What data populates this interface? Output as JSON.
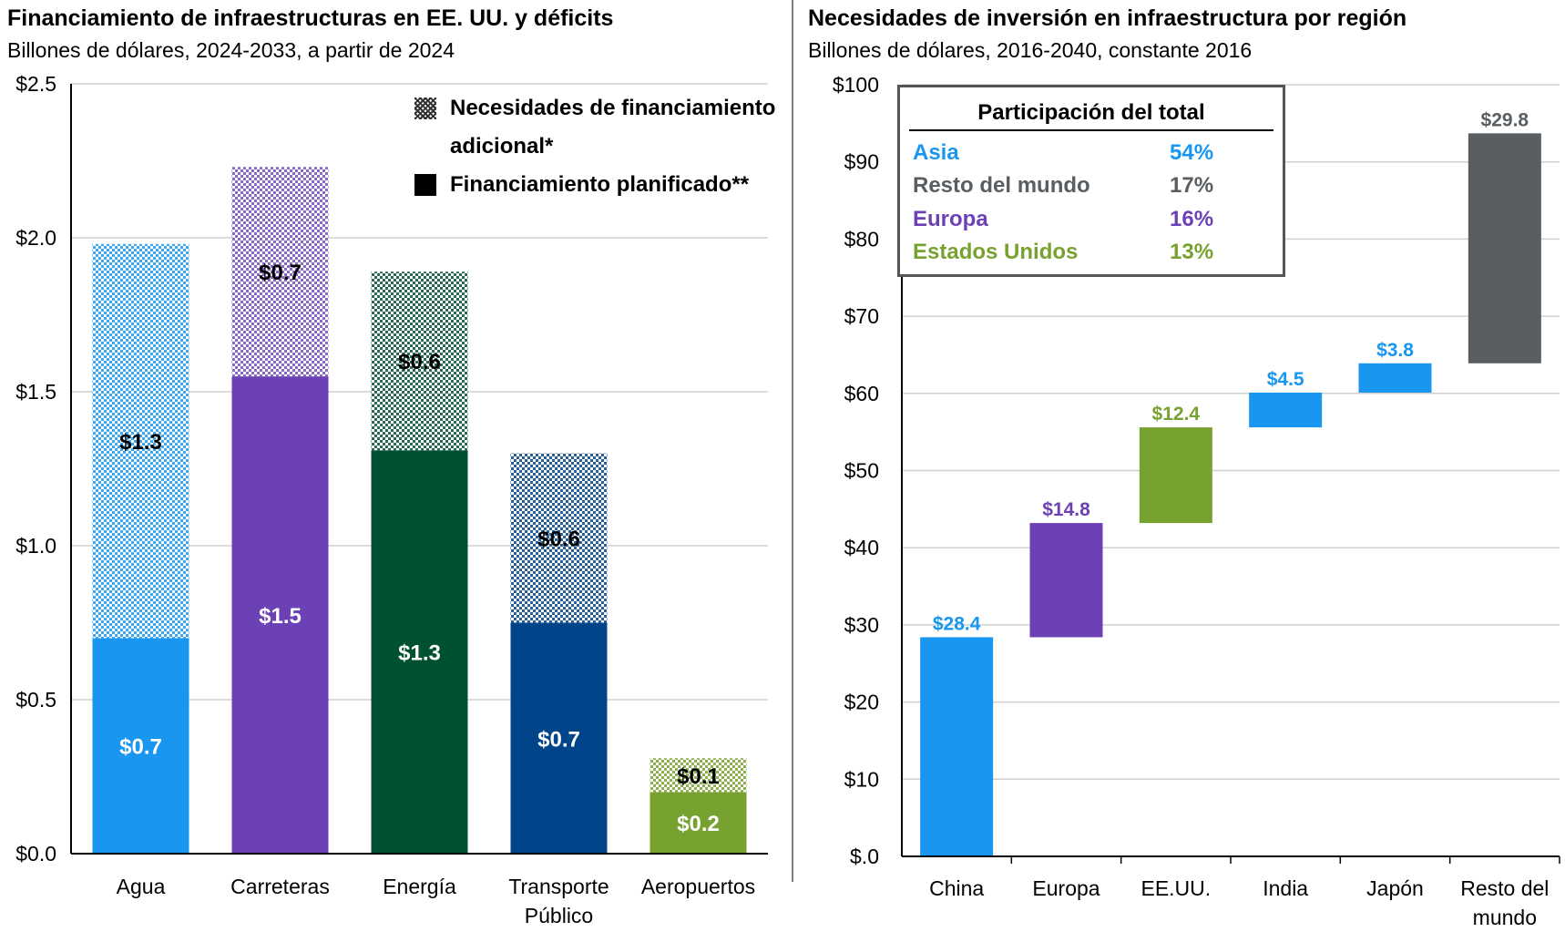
{
  "left_chart": {
    "title": "Financiamiento de infraestructuras en EE. UU. y déficits",
    "subtitle": "Billones de dólares, 2024-2033, a partir de 2024",
    "legend": {
      "additional_label": "Necesidades de financiamiento adicional*",
      "planned_label": "Financiamiento planificado**"
    }
  },
  "right_chart": {
    "title": "Necesidades de inversión en infraestructura por región",
    "subtitle": "Billones de dólares, 2016-2040, constante 2016",
    "share_table": {
      "title": "Participación del total",
      "rows": [
        {
          "name": "Asia",
          "value": "54%",
          "color": "#1996f0"
        },
        {
          "name": "Resto del mundo",
          "value": "17%",
          "color": "#595e63"
        },
        {
          "name": "Europa",
          "value": "16%",
          "color": "#6c41b5"
        },
        {
          "name": "Estados Unidos",
          "value": "13%",
          "color": "#78a22f"
        }
      ]
    }
  },
  "chart_data": [
    {
      "type": "bar",
      "stacked": true,
      "title": "Financiamiento de infraestructuras en EE. UU. y déficits",
      "subtitle": "Billones de dólares, 2024-2033, a partir de 2024",
      "categories": [
        "Agua",
        "Carreteras",
        "Energía",
        "Transporte Público",
        "Aeropuertos"
      ],
      "category_lines": [
        [
          "Agua"
        ],
        [
          "Carreteras"
        ],
        [
          "Energía"
        ],
        [
          "Transporte",
          "Público"
        ],
        [
          "Aeropuertos"
        ]
      ],
      "series": [
        {
          "name": "Financiamiento planificado**",
          "values": [
            0.7,
            1.55,
            1.31,
            0.75,
            0.2
          ],
          "labels": [
            "$0.7",
            "$1.5",
            "$1.3",
            "$0.7",
            "$0.2"
          ]
        },
        {
          "name": "Necesidades de financiamiento adicional*",
          "values": [
            1.28,
            0.68,
            0.58,
            0.55,
            0.11
          ],
          "labels": [
            "$1.3",
            "$0.7",
            "$0.6",
            "$0.6",
            "$0.1"
          ]
        }
      ],
      "colors": [
        "#1996f0",
        "#6c41b5",
        "#005032",
        "#00448a",
        "#78a22f"
      ],
      "ylim": [
        0,
        2.5
      ],
      "yticks": [
        "$0.0",
        "$0.5",
        "$1.0",
        "$1.5",
        "$2.0",
        "$2.5"
      ],
      "legend_position": "top-right",
      "grid": true
    },
    {
      "type": "waterfall",
      "title": "Necesidades de inversión en infraestructura por región",
      "subtitle": "Billones de dólares, 2016-2040, constante 2016",
      "categories": [
        "China",
        "Europa",
        "EE.UU.",
        "India",
        "Japón",
        "Resto del mundo"
      ],
      "category_lines": [
        [
          "China"
        ],
        [
          "Europa"
        ],
        [
          "EE.UU."
        ],
        [
          "India"
        ],
        [
          "Japón"
        ],
        [
          "Resto del",
          "mundo"
        ]
      ],
      "values": [
        28.4,
        14.8,
        12.4,
        4.5,
        3.8,
        29.8
      ],
      "labels": [
        "$28.4",
        "$14.8",
        "$12.4",
        "$4.5",
        "$3.8",
        "$29.8"
      ],
      "colors": [
        "#1996f0",
        "#6c41b5",
        "#78a22f",
        "#1996f0",
        "#1996f0",
        "#595e63"
      ],
      "ylim": [
        0,
        100
      ],
      "yticks": [
        "$.0",
        "$10",
        "$20",
        "$30",
        "$40",
        "$50",
        "$60",
        "$70",
        "$80",
        "$90",
        "$100"
      ],
      "grid": true
    }
  ]
}
